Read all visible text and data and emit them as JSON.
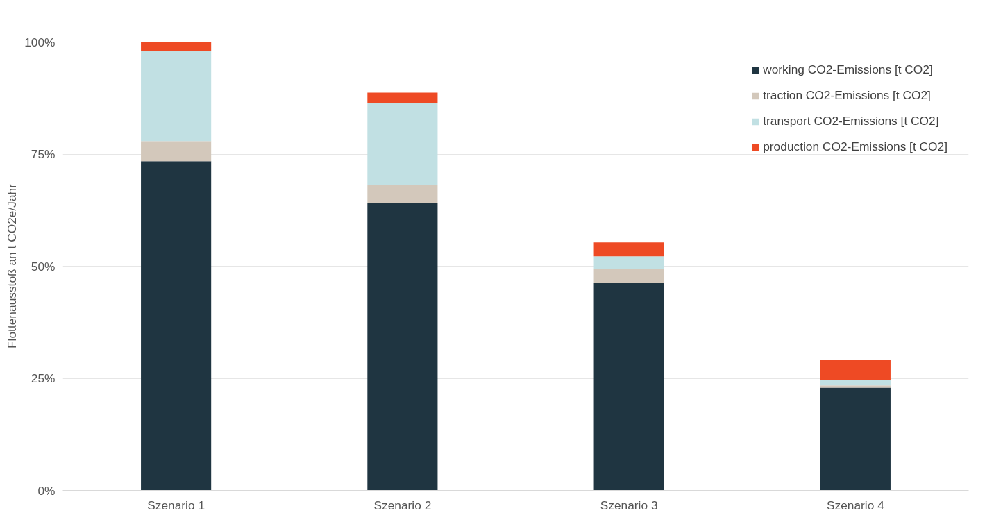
{
  "chart_data": {
    "type": "bar",
    "stacked": true,
    "ylabel": "Flottenausstoß an t CO2e/Jahr",
    "categories": [
      "Szenario 1",
      "Szenario 2",
      "Szenario 3",
      "Szenario 4"
    ],
    "series": [
      {
        "name": "working CO2-Emissions [t CO2]",
        "color": "#1f3541",
        "values": [
          73.4,
          64.1,
          46.3,
          22.9
        ]
      },
      {
        "name": "traction CO2-Emissions [t CO2]",
        "color": "#d3c8bb",
        "values": [
          4.5,
          4.0,
          3.0,
          0.5
        ]
      },
      {
        "name": "transport CO2-Emissions [t CO2]",
        "color": "#c1e0e3",
        "values": [
          20.1,
          18.3,
          2.9,
          1.2
        ]
      },
      {
        "name": "production CO2-Emissions [t CO2]",
        "color": "#ee4a24",
        "values": [
          2.0,
          2.3,
          3.1,
          4.5
        ]
      }
    ],
    "ylim": [
      0,
      100
    ],
    "yticks": [
      {
        "value": 0,
        "label": "0%"
      },
      {
        "value": 25,
        "label": "25%"
      },
      {
        "value": 50,
        "label": "50%"
      },
      {
        "value": 75,
        "label": "75%"
      },
      {
        "value": 100,
        "label": "100%"
      }
    ],
    "grid": "y",
    "legend": "top right"
  }
}
